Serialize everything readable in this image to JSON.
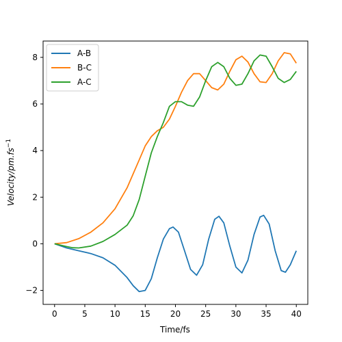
{
  "chart_data": {
    "type": "line",
    "title": "",
    "xlabel": "Time/fs",
    "ylabel_main": "Velocity/pm.fs",
    "ylabel_exp": "−1",
    "xlim": [
      -1.9,
      41.9
    ],
    "ylim": [
      -2.6,
      8.7
    ],
    "xticks": [
      0,
      5,
      10,
      15,
      20,
      25,
      30,
      35,
      40
    ],
    "yticks": [
      -2,
      0,
      2,
      4,
      6,
      8
    ],
    "ytick_labels": [
      "−2",
      "0",
      "2",
      "4",
      "6",
      "8"
    ],
    "grid": false,
    "legend_position": "top-left",
    "series": [
      {
        "name": "A-B",
        "color": "#1f77b4",
        "points": [
          [
            0,
            0
          ],
          [
            2,
            -0.18
          ],
          [
            4,
            -0.3
          ],
          [
            6,
            -0.42
          ],
          [
            8,
            -0.6
          ],
          [
            10,
            -0.92
          ],
          [
            12,
            -1.45
          ],
          [
            13,
            -1.8
          ],
          [
            14,
            -2.05
          ],
          [
            15,
            -2.0
          ],
          [
            16,
            -1.5
          ],
          [
            17,
            -0.6
          ],
          [
            18,
            0.2
          ],
          [
            19,
            0.65
          ],
          [
            19.6,
            0.72
          ],
          [
            20.5,
            0.5
          ],
          [
            21.5,
            -0.3
          ],
          [
            22.5,
            -1.1
          ],
          [
            23.5,
            -1.35
          ],
          [
            24.5,
            -0.9
          ],
          [
            25.5,
            0.2
          ],
          [
            26.5,
            1.05
          ],
          [
            27.2,
            1.18
          ],
          [
            28,
            0.9
          ],
          [
            29,
            -0.1
          ],
          [
            30,
            -1.0
          ],
          [
            31,
            -1.25
          ],
          [
            32,
            -0.7
          ],
          [
            33,
            0.4
          ],
          [
            34,
            1.15
          ],
          [
            34.6,
            1.22
          ],
          [
            35.5,
            0.85
          ],
          [
            36.5,
            -0.3
          ],
          [
            37.5,
            -1.15
          ],
          [
            38.2,
            -1.22
          ],
          [
            39,
            -0.9
          ],
          [
            40,
            -0.3
          ]
        ]
      },
      {
        "name": "B-C",
        "color": "#ff7f0e",
        "points": [
          [
            0,
            0
          ],
          [
            2,
            0.05
          ],
          [
            4,
            0.22
          ],
          [
            6,
            0.5
          ],
          [
            8,
            0.9
          ],
          [
            10,
            1.5
          ],
          [
            12,
            2.4
          ],
          [
            14,
            3.6
          ],
          [
            15,
            4.2
          ],
          [
            16,
            4.6
          ],
          [
            17,
            4.85
          ],
          [
            18,
            5.0
          ],
          [
            19,
            5.35
          ],
          [
            20,
            5.9
          ],
          [
            21,
            6.5
          ],
          [
            22,
            7.0
          ],
          [
            23,
            7.3
          ],
          [
            24,
            7.3
          ],
          [
            25,
            7.0
          ],
          [
            26,
            6.7
          ],
          [
            27,
            6.6
          ],
          [
            28,
            6.85
          ],
          [
            29,
            7.4
          ],
          [
            30,
            7.9
          ],
          [
            31,
            8.05
          ],
          [
            32,
            7.8
          ],
          [
            33,
            7.3
          ],
          [
            34,
            6.95
          ],
          [
            35,
            6.92
          ],
          [
            36,
            7.3
          ],
          [
            37,
            7.85
          ],
          [
            38,
            8.2
          ],
          [
            39,
            8.15
          ],
          [
            40,
            7.75
          ]
        ]
      },
      {
        "name": "A-C",
        "color": "#2ca02c",
        "points": [
          [
            0,
            0
          ],
          [
            2,
            -0.12
          ],
          [
            3,
            -0.17
          ],
          [
            4,
            -0.18
          ],
          [
            6,
            -0.1
          ],
          [
            8,
            0.1
          ],
          [
            10,
            0.4
          ],
          [
            12,
            0.8
          ],
          [
            13,
            1.2
          ],
          [
            14,
            1.9
          ],
          [
            15,
            2.9
          ],
          [
            16,
            3.9
          ],
          [
            17,
            4.6
          ],
          [
            18,
            5.2
          ],
          [
            19,
            5.9
          ],
          [
            20,
            6.1
          ],
          [
            21,
            6.1
          ],
          [
            22,
            5.95
          ],
          [
            23,
            5.9
          ],
          [
            24,
            6.3
          ],
          [
            25,
            7.0
          ],
          [
            26,
            7.6
          ],
          [
            27,
            7.78
          ],
          [
            28,
            7.6
          ],
          [
            29,
            7.1
          ],
          [
            30,
            6.8
          ],
          [
            31,
            6.85
          ],
          [
            32,
            7.3
          ],
          [
            33,
            7.85
          ],
          [
            34,
            8.1
          ],
          [
            35,
            8.05
          ],
          [
            36,
            7.6
          ],
          [
            37,
            7.1
          ],
          [
            38,
            6.92
          ],
          [
            39,
            7.05
          ],
          [
            40,
            7.4
          ]
        ]
      }
    ]
  }
}
